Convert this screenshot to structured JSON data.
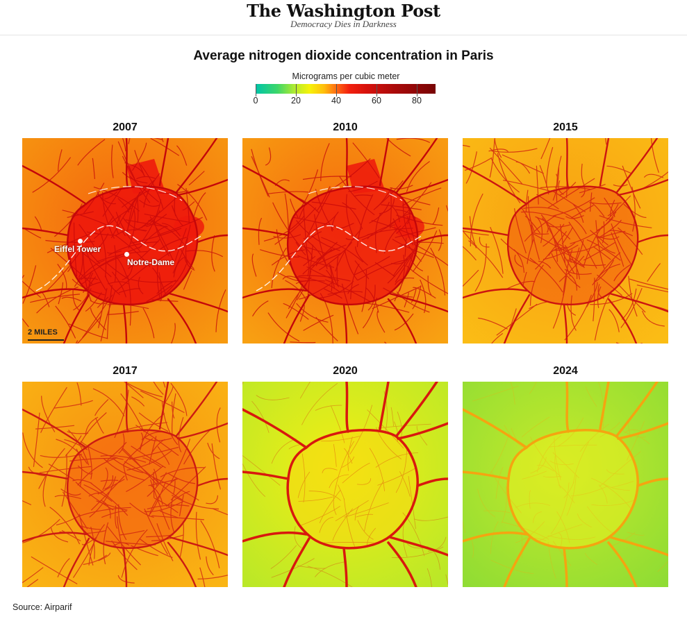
{
  "header": {
    "logo": "The Washington Post",
    "tagline": "Democracy Dies in Darkness"
  },
  "title": "Average nitrogen dioxide concentration in Paris",
  "legend": {
    "label": "Micrograms per cubic meter",
    "ticks": [
      "0",
      "20",
      "40",
      "60",
      "80"
    ],
    "colors": [
      "#00c4a8",
      "#3cd66a",
      "#b4ec2e",
      "#f6f20a",
      "#ffbe0c",
      "#ff6a12",
      "#f2200e",
      "#d6120c",
      "#a80a0a",
      "#780404"
    ]
  },
  "panels": [
    {
      "year": "2007",
      "background": "#f4640e",
      "background_edge": "#f79a10",
      "road_color": "#c4060a",
      "hot_zone": "#ee1a0c",
      "hot_level": 1.0
    },
    {
      "year": "2010",
      "background": "#f56a0d",
      "background_edge": "#f8a212",
      "road_color": "#c4060a",
      "hot_zone": "#ee1c0c",
      "hot_level": 0.75
    },
    {
      "year": "2015",
      "background": "#f8a012",
      "background_edge": "#fbbd15",
      "road_color": "#cc1410",
      "hot_zone": "#f4660e",
      "hot_level": 0.35
    },
    {
      "year": "2017",
      "background": "#f79010",
      "background_edge": "#fab514",
      "road_color": "#cc1a12",
      "hot_zone": "#f46410",
      "hot_level": 0.3
    },
    {
      "year": "2020",
      "background": "#f2ee14",
      "background_edge": "#b9e828",
      "road_color": "#d8180e",
      "hot_zone": "#f7d810",
      "hot_level": 0.0
    },
    {
      "year": "2024",
      "background": "#c6ea2a",
      "background_edge": "#8fdc34",
      "road_color": "#f5a410",
      "hot_zone": "#e6ee20",
      "hot_level": 0.0
    }
  ],
  "annotations": {
    "eiffel_tower": "Eiffel Tower",
    "notre_dame": "Notre-Dame",
    "scale": "2 MILES"
  },
  "source": "Source: Airparif"
}
